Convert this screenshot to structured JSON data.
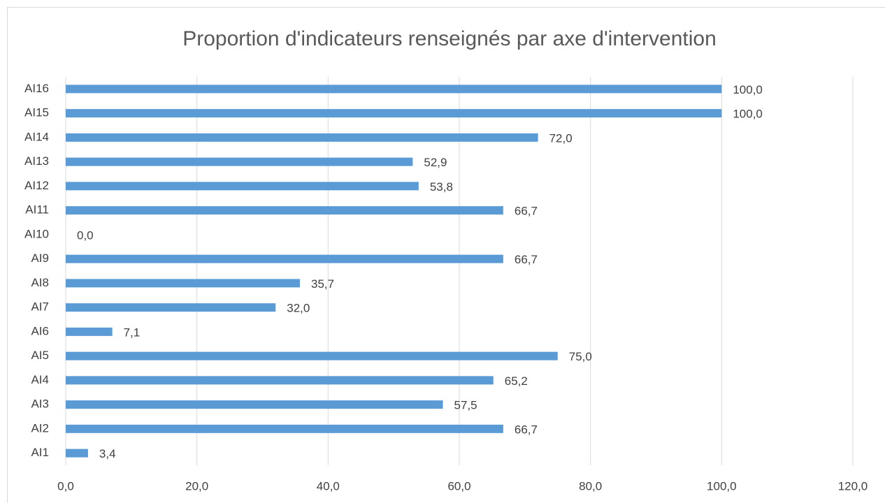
{
  "chart_data": {
    "type": "bar",
    "orientation": "horizontal",
    "title": "Proportion d'indicateurs renseignés par axe d'intervention",
    "categories": [
      "AI1",
      "AI2",
      "AI3",
      "AI4",
      "AI5",
      "AI6",
      "AI7",
      "AI8",
      "AI9",
      "AI10",
      "AI11",
      "AI12",
      "AI13",
      "AI14",
      "AI15",
      "AI16"
    ],
    "values": [
      3.4,
      66.7,
      57.5,
      65.2,
      75.0,
      7.1,
      32.0,
      35.7,
      66.7,
      0.0,
      66.7,
      53.8,
      52.9,
      72.0,
      100.0,
      100.0
    ],
    "value_labels": [
      "3,4",
      "66,7",
      "57,5",
      "65,2",
      "75,0",
      "7,1",
      "32,0",
      "35,7",
      "66,7",
      "0,0",
      "66,7",
      "53,8",
      "52,9",
      "72,0",
      "100,0",
      "100,0"
    ],
    "color": "#5b9bd5",
    "xlim": [
      0,
      120
    ],
    "xticks": [
      {
        "value": 0,
        "label": "0,0"
      },
      {
        "value": 20,
        "label": "20,0"
      },
      {
        "value": 40,
        "label": "40,0"
      },
      {
        "value": 60,
        "label": "60,0"
      },
      {
        "value": 80,
        "label": "80,0"
      },
      {
        "value": 100,
        "label": "100,0"
      },
      {
        "value": 120,
        "label": "120,0"
      }
    ],
    "grid": true
  }
}
